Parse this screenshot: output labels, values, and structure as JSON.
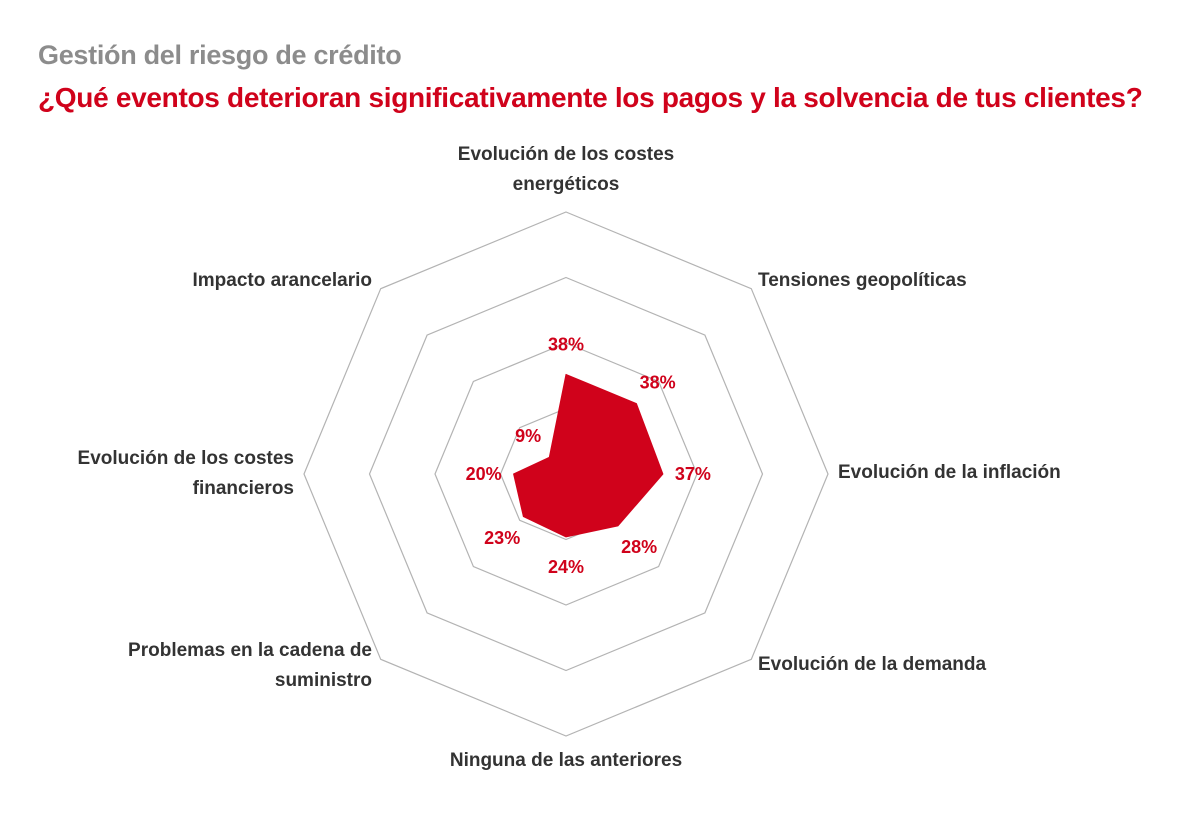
{
  "header": {
    "subtitle": "Gestión del riesgo de crédito",
    "title": "¿Qué eventos deterioran significativamente los pagos y la solvencia de tus clientes?"
  },
  "colors": {
    "accent": "#d0021b",
    "subtitle": "#8c8c8c",
    "grid": "#b3b3b3",
    "label": "#333333"
  },
  "chart_data": {
    "type": "radar",
    "title": "¿Qué eventos deterioran significativamente los pagos y la solvencia de tus clientes?",
    "subtitle": "Gestión del riesgo de crédito",
    "categories": [
      [
        "Evolución de los costes",
        "energéticos"
      ],
      [
        "Tensiones geopolíticas"
      ],
      [
        "Evolución de la inflación"
      ],
      [
        "Evolución de la demanda"
      ],
      [
        "Ninguna de las anteriores"
      ],
      [
        "Problemas en la cadena de",
        "suministro"
      ],
      [
        "Evolución de los costes",
        "financieros"
      ],
      [
        "Impacto arancelario"
      ]
    ],
    "values": [
      38,
      38,
      37,
      28,
      24,
      23,
      20,
      9
    ],
    "value_labels": [
      "38%",
      "38%",
      "37%",
      "28%",
      "24%",
      "23%",
      "20%",
      "9%"
    ],
    "unit": "%",
    "range": [
      0,
      100
    ],
    "grid_levels": 4,
    "legend": "none"
  }
}
